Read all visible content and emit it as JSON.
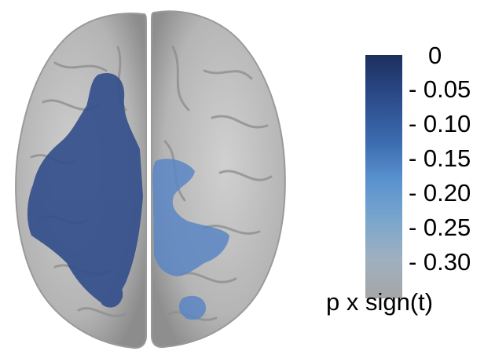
{
  "colorbar": {
    "ticks": [
      "0",
      "- 0.05",
      "- 0.10",
      "- 0.15",
      "- 0.20",
      "- 0.25",
      "- 0.30"
    ],
    "colors": [
      "#1c2f5e",
      "#2c4c8c",
      "#3c6cb0",
      "#5b93d0",
      "#7aa6cc",
      "#9fb0c0",
      "#a6a6a6"
    ]
  },
  "legend_label": "p x sign(t)",
  "brain": {
    "surface_color": "#b9b9b9",
    "sulcus_color": "#8f8f8f",
    "activation_color": "#34508c"
  }
}
